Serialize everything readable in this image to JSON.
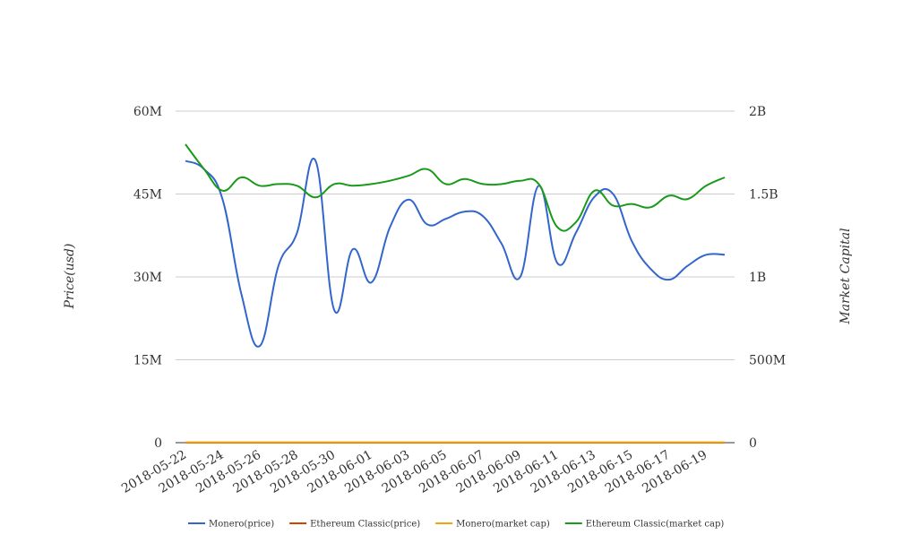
{
  "chart_data": {
    "type": "line",
    "title": "",
    "ylabel_left": "Price(usd)",
    "ylabel_right": "Market Capital",
    "ylim_left": [
      0,
      60000000
    ],
    "ylim_right": [
      0,
      2000000000
    ],
    "yticks_left": [
      {
        "value": 0,
        "label": "0"
      },
      {
        "value": 15000000,
        "label": "15M"
      },
      {
        "value": 30000000,
        "label": "30M"
      },
      {
        "value": 45000000,
        "label": "45M"
      },
      {
        "value": 60000000,
        "label": "60M"
      }
    ],
    "yticks_right": [
      {
        "value": 0,
        "label": "0"
      },
      {
        "value": 500000000,
        "label": "500M"
      },
      {
        "value": 1000000000,
        "label": "1B"
      },
      {
        "value": 1500000000,
        "label": "1.5B"
      },
      {
        "value": 2000000000,
        "label": "2B"
      }
    ],
    "grid": true,
    "legend_position": "bottom",
    "x": [
      "2018-05-22",
      "2018-05-23",
      "2018-05-24",
      "2018-05-25",
      "2018-05-26",
      "2018-05-27",
      "2018-05-28",
      "2018-05-29",
      "2018-05-30",
      "2018-05-31",
      "2018-06-01",
      "2018-06-02",
      "2018-06-03",
      "2018-06-04",
      "2018-06-05",
      "2018-06-06",
      "2018-06-07",
      "2018-06-08",
      "2018-06-09",
      "2018-06-10",
      "2018-06-11",
      "2018-06-12",
      "2018-06-13",
      "2018-06-14",
      "2018-06-15",
      "2018-06-16",
      "2018-06-17",
      "2018-06-18",
      "2018-06-19",
      "2018-06-20"
    ],
    "xtick_labels": [
      "2018-05-22",
      "2018-05-24",
      "2018-05-26",
      "2018-05-28",
      "2018-05-30",
      "2018-06-01",
      "2018-06-03",
      "2018-06-05",
      "2018-06-07",
      "2018-06-09",
      "2018-06-11",
      "2018-06-13",
      "2018-06-15",
      "2018-06-17",
      "2018-06-19"
    ],
    "series": [
      {
        "name": "Monero(price)",
        "axis": "left",
        "color": "#3366cc",
        "values": [
          51000000,
          49500000,
          44000000,
          27000000,
          17500000,
          32000000,
          38000000,
          51000000,
          24000000,
          35000000,
          29000000,
          39000000,
          44000000,
          39500000,
          40500000,
          41800000,
          41000000,
          36000000,
          30000000,
          46500000,
          32500000,
          38000000,
          44500000,
          45000000,
          36500000,
          31500000,
          29500000,
          32000000,
          34000000,
          34000000
        ]
      },
      {
        "name": "Ethereum Classic(price)",
        "axis": "left",
        "color": "#cc4400",
        "values": [
          14,
          14,
          13,
          13,
          13,
          14,
          14,
          13,
          13,
          13,
          14,
          14,
          14,
          14,
          14,
          14,
          14,
          14,
          14,
          14,
          13,
          13,
          14,
          14,
          14,
          14,
          14,
          14,
          14,
          14
        ]
      },
      {
        "name": "Monero(market cap)",
        "axis": "right",
        "color": "#f0a30a",
        "values": [
          2000000,
          2000000,
          2000000,
          2000000,
          2000000,
          2000000,
          2000000,
          2000000,
          2000000,
          2000000,
          2000000,
          2000000,
          2000000,
          2000000,
          2000000,
          2000000,
          2000000,
          2000000,
          2000000,
          2000000,
          2000000,
          2000000,
          2000000,
          2000000,
          2000000,
          2000000,
          2000000,
          2000000,
          2000000,
          2000000
        ]
      },
      {
        "name": "Ethereum Classic(market cap)",
        "axis": "right",
        "color": "#1a9a1a",
        "values": [
          1800000000,
          1650000000,
          1520000000,
          1600000000,
          1550000000,
          1560000000,
          1550000000,
          1480000000,
          1560000000,
          1550000000,
          1560000000,
          1580000000,
          1610000000,
          1650000000,
          1560000000,
          1590000000,
          1560000000,
          1560000000,
          1580000000,
          1560000000,
          1300000000,
          1330000000,
          1520000000,
          1430000000,
          1440000000,
          1420000000,
          1490000000,
          1470000000,
          1550000000,
          1600000000
        ]
      }
    ]
  }
}
